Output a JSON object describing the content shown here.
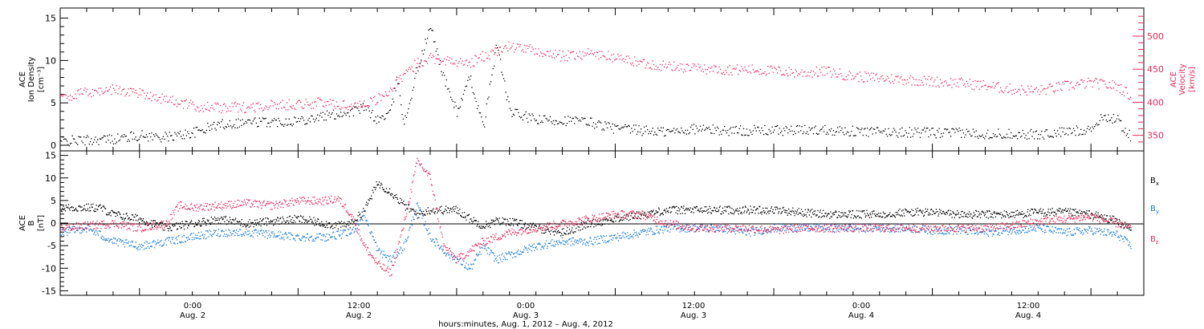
{
  "colors": {
    "black": "#000000",
    "pink": "#e8285a",
    "blue": "#1a7ad6"
  },
  "top_panel": {
    "ylabel_left": [
      "ACE",
      "Ion Density",
      "[cm⁻³]"
    ],
    "ylabel_right": [
      "ACE",
      "Velocity",
      "[km/s]"
    ],
    "left_ticks": [
      "0",
      "5",
      "10",
      "15"
    ],
    "right_ticks": [
      "350",
      "400",
      "450",
      "500"
    ]
  },
  "bottom_panel": {
    "ylabel": [
      "ACE",
      "B",
      "[nT]"
    ],
    "ticks": [
      "-15",
      "-10",
      "-5",
      "0",
      "5",
      "10",
      "15"
    ],
    "legend": [
      {
        "label": "B",
        "sub": "x",
        "color": "#000000"
      },
      {
        "label": "B",
        "sub": "y",
        "color": "#1a7ad6"
      },
      {
        "label": "B",
        "sub": "z",
        "color": "#e8285a"
      }
    ]
  },
  "x_axis": {
    "ticks": [
      {
        "time": "0:00",
        "date": "Aug. 2"
      },
      {
        "time": "12:00",
        "date": "Aug. 2"
      },
      {
        "time": "0:00",
        "date": "Aug. 3"
      },
      {
        "time": "12:00",
        "date": "Aug. 3"
      },
      {
        "time": "0:00",
        "date": "Aug. 4"
      },
      {
        "time": "12:00",
        "date": "Aug. 4"
      }
    ],
    "title": "hours:minutes, Aug.  1, 2012 – Aug.  4, 2012"
  },
  "chart_data": [
    {
      "type": "scatter",
      "panel": "top",
      "x_unit": "hours since 2012-08-01 18:00",
      "xlim": [
        0,
        82
      ],
      "series": [
        {
          "name": "Ion Density",
          "axis": "left",
          "ylim": [
            0,
            16
          ],
          "color": "#000000",
          "x": [
            0,
            4,
            6,
            8,
            10,
            12,
            14,
            16,
            18,
            20,
            22,
            23,
            24,
            25,
            25.5,
            26,
            27,
            28,
            29,
            30,
            31,
            32,
            33,
            34,
            36,
            38,
            40,
            42,
            44,
            46,
            48,
            50,
            52,
            54,
            56,
            58,
            60,
            62,
            64,
            66,
            68,
            70,
            72,
            74,
            76,
            78,
            79,
            80,
            81
          ],
          "y": [
            0.5,
            0.8,
            1.2,
            1.0,
            1.5,
            2.5,
            2.8,
            2.8,
            3.0,
            3.5,
            4.0,
            4.5,
            3.0,
            4.0,
            8.0,
            2.5,
            9.0,
            14.0,
            8.0,
            4.0,
            8.0,
            2.0,
            12.0,
            4.0,
            3.0,
            3.0,
            2.8,
            2.0,
            1.8,
            1.6,
            2.0,
            1.8,
            1.8,
            1.8,
            1.8,
            1.9,
            1.7,
            1.6,
            1.6,
            1.5,
            1.5,
            1.4,
            1.4,
            1.3,
            1.6,
            2.0,
            3.5,
            3.0,
            1.0
          ]
        },
        {
          "name": "Velocity",
          "axis": "right",
          "ylim": [
            335,
            540
          ],
          "color": "#e8285a",
          "x": [
            0,
            2,
            4,
            6,
            8,
            10,
            12,
            14,
            16,
            18,
            20,
            22,
            24,
            25,
            26,
            27,
            28,
            29,
            30,
            31,
            32,
            34,
            36,
            38,
            40,
            42,
            44,
            46,
            48,
            50,
            52,
            54,
            56,
            58,
            60,
            62,
            64,
            66,
            68,
            70,
            72,
            74,
            76,
            78,
            80,
            81
          ],
          "y": [
            408,
            415,
            420,
            415,
            405,
            395,
            392,
            393,
            396,
            398,
            400,
            395,
            405,
            420,
            440,
            460,
            468,
            465,
            460,
            460,
            470,
            485,
            478,
            470,
            475,
            468,
            460,
            455,
            452,
            450,
            450,
            448,
            445,
            447,
            440,
            437,
            435,
            432,
            430,
            426,
            420,
            418,
            425,
            430,
            425,
            410
          ]
        }
      ]
    },
    {
      "type": "scatter",
      "panel": "bottom",
      "x_unit": "hours since 2012-08-01 18:00",
      "xlim": [
        0,
        82
      ],
      "ylim": [
        -16,
        16
      ],
      "series": [
        {
          "name": "Bx",
          "color": "#000000",
          "x": [
            0,
            3,
            4,
            6,
            8,
            10,
            12,
            14,
            16,
            18,
            20,
            21,
            22,
            23,
            24,
            25,
            26,
            27,
            28,
            29,
            30,
            31,
            32,
            33,
            34,
            36,
            38,
            40,
            42,
            44,
            46,
            48,
            50,
            52,
            54,
            56,
            58,
            60,
            62,
            64,
            66,
            68,
            70,
            72,
            74,
            76,
            78,
            80,
            81
          ],
          "y": [
            3.5,
            3.5,
            2.0,
            1.0,
            -1.0,
            0.0,
            1.0,
            0.0,
            0.5,
            1.0,
            0.0,
            -0.5,
            0.0,
            3.0,
            9.0,
            7.0,
            4.0,
            2.0,
            3.0,
            3.0,
            3.0,
            1.0,
            -0.5,
            0.5,
            0.5,
            -1.0,
            -2.0,
            0.0,
            1.0,
            2.0,
            3.0,
            3.0,
            3.0,
            3.0,
            3.0,
            2.5,
            2.0,
            2.0,
            2.0,
            2.5,
            2.5,
            2.0,
            2.0,
            2.0,
            2.5,
            2.5,
            2.0,
            0.5,
            -1.5
          ]
        },
        {
          "name": "By",
          "color": "#1a7ad6",
          "x": [
            0,
            2,
            4,
            6,
            8,
            10,
            12,
            14,
            16,
            18,
            20,
            22,
            23,
            24,
            25,
            26,
            27,
            28,
            29,
            30,
            31,
            32,
            33,
            34,
            36,
            38,
            40,
            42,
            44,
            46,
            48,
            50,
            52,
            54,
            56,
            58,
            60,
            62,
            64,
            66,
            68,
            70,
            72,
            74,
            76,
            78,
            80,
            81
          ],
          "y": [
            -2.0,
            -1.0,
            -4.0,
            -5.0,
            -4.0,
            -3.0,
            -2.0,
            -2.0,
            -2.5,
            -3.0,
            -3.0,
            -2.0,
            2.0,
            -6.0,
            -8.0,
            -5.0,
            4.0,
            -3.0,
            -6.0,
            -8.0,
            -10.0,
            -5.0,
            -8.0,
            -7.0,
            -5.0,
            -4.0,
            -4.0,
            -3.0,
            -2.0,
            -1.0,
            -1.0,
            -1.0,
            -2.0,
            -1.0,
            -1.0,
            -1.0,
            -1.0,
            -1.0,
            -1.0,
            -1.5,
            -1.5,
            -2.0,
            -1.5,
            -1.0,
            -2.0,
            -1.5,
            -2.5,
            -5.0
          ]
        },
        {
          "name": "Bz",
          "color": "#e8285a",
          "x": [
            0,
            2,
            4,
            6,
            8,
            9,
            10,
            12,
            14,
            16,
            18,
            20,
            21,
            22,
            23,
            24,
            25,
            26,
            27,
            28,
            29,
            30,
            31,
            32,
            33,
            34,
            36,
            38,
            40,
            42,
            44,
            46,
            48,
            50,
            52,
            54,
            56,
            58,
            60,
            62,
            64,
            66,
            68,
            70,
            72,
            74,
            76,
            78,
            80,
            81
          ],
          "y": [
            -1.0,
            -0.5,
            0.0,
            -1.0,
            0.0,
            4.0,
            3.5,
            4.0,
            4.5,
            4.0,
            5.0,
            5.0,
            5.5,
            2.0,
            -5.0,
            -9.0,
            -11.0,
            0.0,
            14.0,
            10.0,
            -5.0,
            -8.0,
            -6.0,
            -4.0,
            -3.0,
            -2.0,
            -1.0,
            0.0,
            1.0,
            2.0,
            2.0,
            0.0,
            -1.0,
            -1.0,
            -1.0,
            -1.5,
            -1.0,
            -1.0,
            -1.0,
            -1.0,
            -1.0,
            -1.0,
            -1.0,
            -1.0,
            -0.5,
            0.5,
            1.0,
            1.5,
            0.0,
            -1.0
          ]
        }
      ]
    }
  ]
}
